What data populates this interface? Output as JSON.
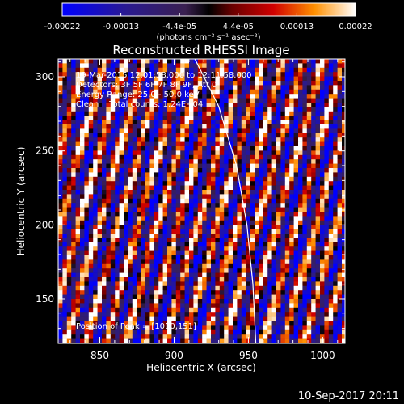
{
  "chart_data": {
    "type": "heatmap",
    "title": "Reconstructed RHESSI Image",
    "xlabel": "Heliocentric X (arcsec)",
    "ylabel": "Heliocentric Y (arcsec)",
    "xlim": [
      822,
      1015
    ],
    "ylim": [
      120,
      312
    ],
    "x_ticks": [
      850,
      900,
      950,
      1000
    ],
    "y_ticks": [
      150,
      200,
      250,
      300
    ],
    "grid": false,
    "colorbar": {
      "range": [
        -0.00022,
        0.00022
      ],
      "tick_labels": [
        "-0.00022",
        "-0.00013",
        "-4.4e-05",
        "4.4e-05",
        "0.00013",
        "0.00022"
      ],
      "units": "(photons cm⁻² s⁻¹ asec⁻²)"
    },
    "info_lines": [
      "19-Mar-2015 12:01:58.000 to 12:11:58.000",
      "Detectors: 3F 5F 6F 7F 8F 9F, Att 0",
      "Energy Range: 25.0 - 50.0 keV",
      "Clean    Total counts: 1.24E+04"
    ],
    "peak_label": "Position of Peak = [1010,151]",
    "limb_curve": [
      [
        914,
        312
      ],
      [
        930,
        280
      ],
      [
        942,
        240
      ],
      [
        949,
        200
      ],
      [
        953,
        160
      ],
      [
        955,
        120
      ]
    ]
  },
  "footer": {
    "timestamp": "10-Sep-2017 20:11"
  }
}
